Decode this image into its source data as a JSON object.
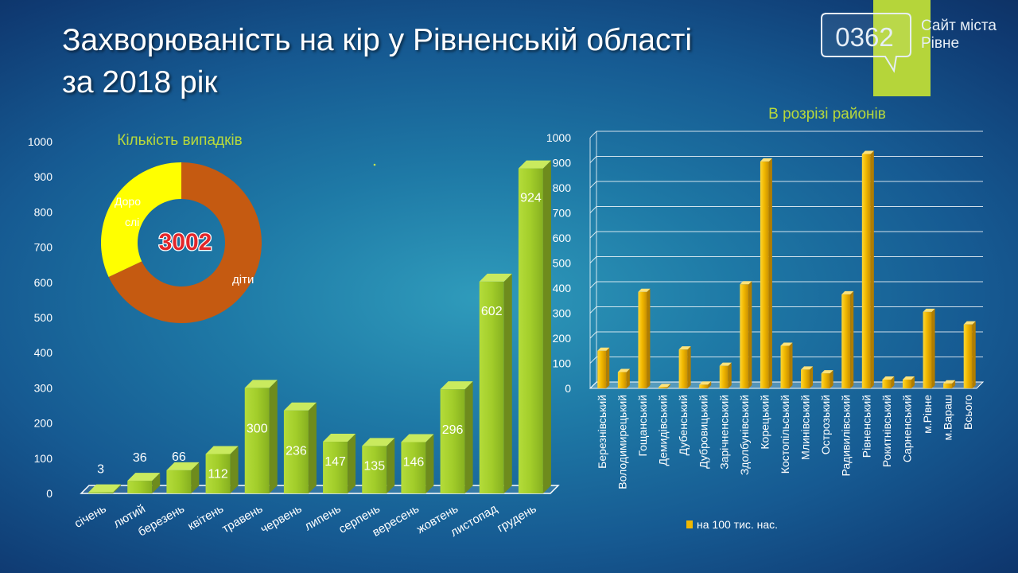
{
  "slide": {
    "title_line1": "Захворюваність на кір у Рівненській області",
    "title_line2": "за 2018 рік"
  },
  "branding": {
    "logo_text": "0362",
    "site_line1": "Сайт міста",
    "site_line2": "Рівне"
  },
  "colors": {
    "green_bar": "#a2cd2a",
    "yellow_bar": "#f1b800",
    "donut_children": "#c55a11",
    "donut_adults": "#ffff00",
    "title_green": "#b8d93b",
    "label_red": "#e3262a"
  },
  "chart_data": [
    {
      "type": "bar",
      "title": "Кількість випадків",
      "categories": [
        "січень",
        "лютий",
        "березень",
        "квітень",
        "травень",
        "червень",
        "липень",
        "серпень",
        "вересень",
        "жовтень",
        "листопад",
        "грудень"
      ],
      "values": [
        3,
        36,
        66,
        112,
        300,
        236,
        147,
        135,
        146,
        296,
        602,
        924
      ],
      "ylim": [
        0,
        1000
      ],
      "yticks": [
        0,
        100,
        200,
        300,
        400,
        500,
        600,
        700,
        800,
        900,
        1000
      ],
      "grid": false
    },
    {
      "type": "pie",
      "total_label": "3002",
      "slices": [
        {
          "label": "діти",
          "value": 68
        },
        {
          "label": "Доро слі",
          "value": 32
        }
      ]
    },
    {
      "type": "bar",
      "title": "В розрізі районів",
      "categories": [
        "Березнівський",
        "Володимирецький",
        "Гощанський",
        "Демидівський",
        "Дубенський",
        "Дубровицький",
        "Зарічненський",
        "Здолбунівський",
        "Корецький",
        "Костопільський",
        "Млинівський",
        "Острозький",
        "Радивилівський",
        "Рівненський",
        "Рокитнівський",
        "Сарненський",
        "м.Рівне",
        "м.Вараш",
        "Всього"
      ],
      "series": [
        {
          "name": "на 100 тис. нас.",
          "values": [
            150,
            65,
            385,
            5,
            155,
            15,
            90,
            415,
            905,
            170,
            75,
            60,
            375,
            935,
            35,
            35,
            305,
            20,
            255
          ]
        }
      ],
      "ylim": [
        0,
        1000
      ],
      "yticks": [
        0,
        100,
        200,
        300,
        400,
        500,
        600,
        700,
        800,
        900,
        1000
      ],
      "grid": true,
      "legend_position": "bottom"
    }
  ]
}
